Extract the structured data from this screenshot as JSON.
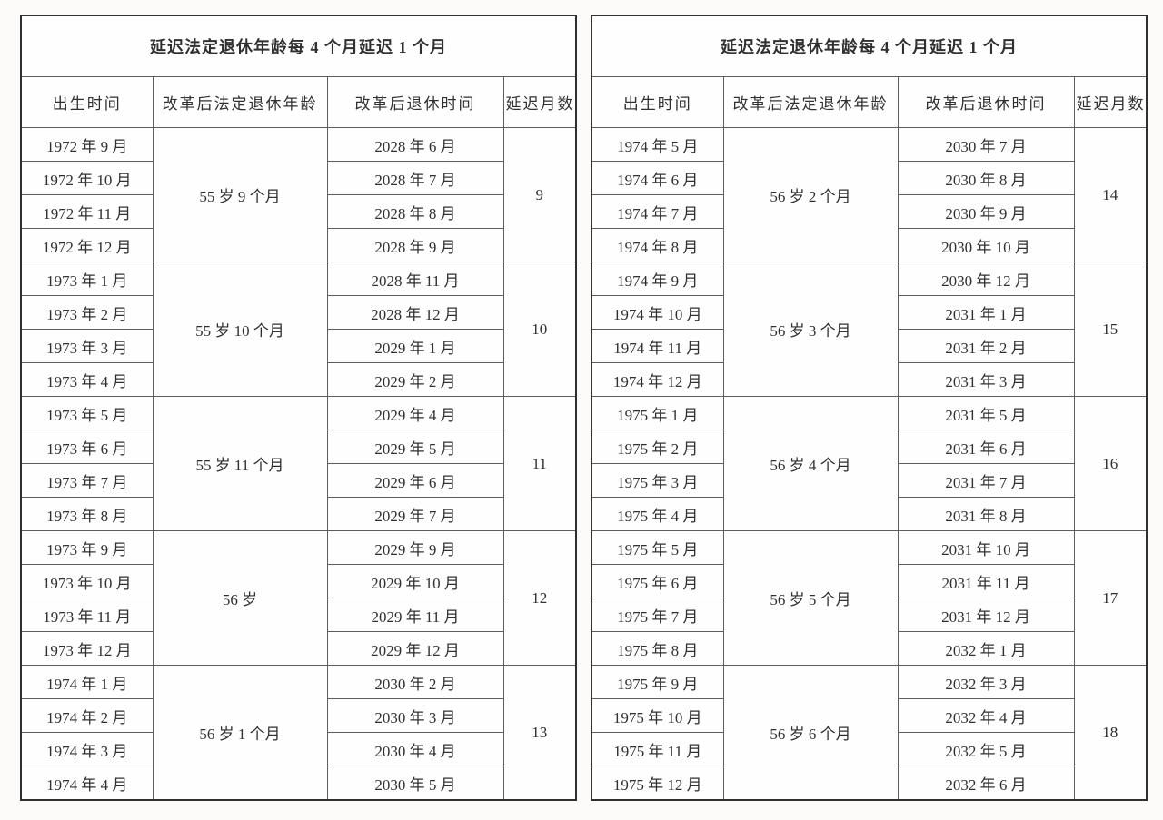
{
  "colors": {
    "page_background": "#fcfbfa",
    "table_background": "#fffefe",
    "text": "#303030",
    "border_inner": "#5d5d5d",
    "border_outer": "#2f2f2f"
  },
  "tables": [
    {
      "title": "延迟法定退休年龄每 4 个月延迟 1 个月",
      "headers": [
        "出生时间",
        "改革后法定退休年龄",
        "改革后退休时间",
        "延迟月数"
      ],
      "groups": [
        {
          "births": [
            "1972 年 9 月",
            "1972 年 10 月",
            "1972 年 11 月",
            "1972 年 12 月"
          ],
          "age": "55 岁 9 个月",
          "retirements": [
            "2028 年 6 月",
            "2028 年 7 月",
            "2028 年 8 月",
            "2028 年 9 月"
          ],
          "delay_months": "9"
        },
        {
          "births": [
            "1973 年 1 月",
            "1973 年 2 月",
            "1973 年 3 月",
            "1973 年 4 月"
          ],
          "age": "55 岁 10 个月",
          "retirements": [
            "2028 年 11 月",
            "2028 年 12 月",
            "2029 年 1 月",
            "2029 年 2 月"
          ],
          "delay_months": "10"
        },
        {
          "births": [
            "1973 年 5 月",
            "1973 年 6 月",
            "1973 年 7 月",
            "1973 年 8 月"
          ],
          "age": "55 岁 11 个月",
          "retirements": [
            "2029 年 4 月",
            "2029 年 5 月",
            "2029 年 6 月",
            "2029 年 7 月"
          ],
          "delay_months": "11"
        },
        {
          "births": [
            "1973 年 9 月",
            "1973 年 10 月",
            "1973 年 11 月",
            "1973 年 12 月"
          ],
          "age": "56 岁",
          "retirements": [
            "2029 年 9 月",
            "2029 年 10 月",
            "2029 年 11 月",
            "2029 年 12 月"
          ],
          "delay_months": "12"
        },
        {
          "births": [
            "1974 年 1 月",
            "1974 年 2 月",
            "1974 年 3 月",
            "1974 年 4 月"
          ],
          "age": "56 岁 1 个月",
          "retirements": [
            "2030 年 2 月",
            "2030 年 3 月",
            "2030 年 4 月",
            "2030 年 5 月"
          ],
          "delay_months": "13"
        }
      ]
    },
    {
      "title": "延迟法定退休年龄每 4 个月延迟 1 个月",
      "headers": [
        "出生时间",
        "改革后法定退休年龄",
        "改革后退休时间",
        "延迟月数"
      ],
      "groups": [
        {
          "births": [
            "1974 年 5 月",
            "1974 年 6 月",
            "1974 年 7 月",
            "1974 年 8 月"
          ],
          "age": "56 岁 2 个月",
          "retirements": [
            "2030 年 7 月",
            "2030 年 8 月",
            "2030 年 9 月",
            "2030 年 10 月"
          ],
          "delay_months": "14"
        },
        {
          "births": [
            "1974 年 9 月",
            "1974 年 10 月",
            "1974 年 11 月",
            "1974 年 12 月"
          ],
          "age": "56 岁 3 个月",
          "retirements": [
            "2030 年 12 月",
            "2031 年 1 月",
            "2031 年 2 月",
            "2031 年 3 月"
          ],
          "delay_months": "15"
        },
        {
          "births": [
            "1975 年 1 月",
            "1975 年 2 月",
            "1975 年 3 月",
            "1975 年 4 月"
          ],
          "age": "56 岁 4 个月",
          "retirements": [
            "2031 年 5 月",
            "2031 年 6 月",
            "2031 年 7 月",
            "2031 年 8 月"
          ],
          "delay_months": "16"
        },
        {
          "births": [
            "1975 年 5 月",
            "1975 年 6 月",
            "1975 年 7 月",
            "1975 年 8 月"
          ],
          "age": "56 岁 5 个月",
          "retirements": [
            "2031 年 10 月",
            "2031 年 11 月",
            "2031 年 12 月",
            "2032 年 1 月"
          ],
          "delay_months": "17"
        },
        {
          "births": [
            "1975 年 9 月",
            "1975 年 10 月",
            "1975 年 11 月",
            "1975 年 12 月"
          ],
          "age": "56 岁 6 个月",
          "retirements": [
            "2032 年 3 月",
            "2032 年 4 月",
            "2032 年 5 月",
            "2032 年 6 月"
          ],
          "delay_months": "18"
        }
      ]
    }
  ]
}
